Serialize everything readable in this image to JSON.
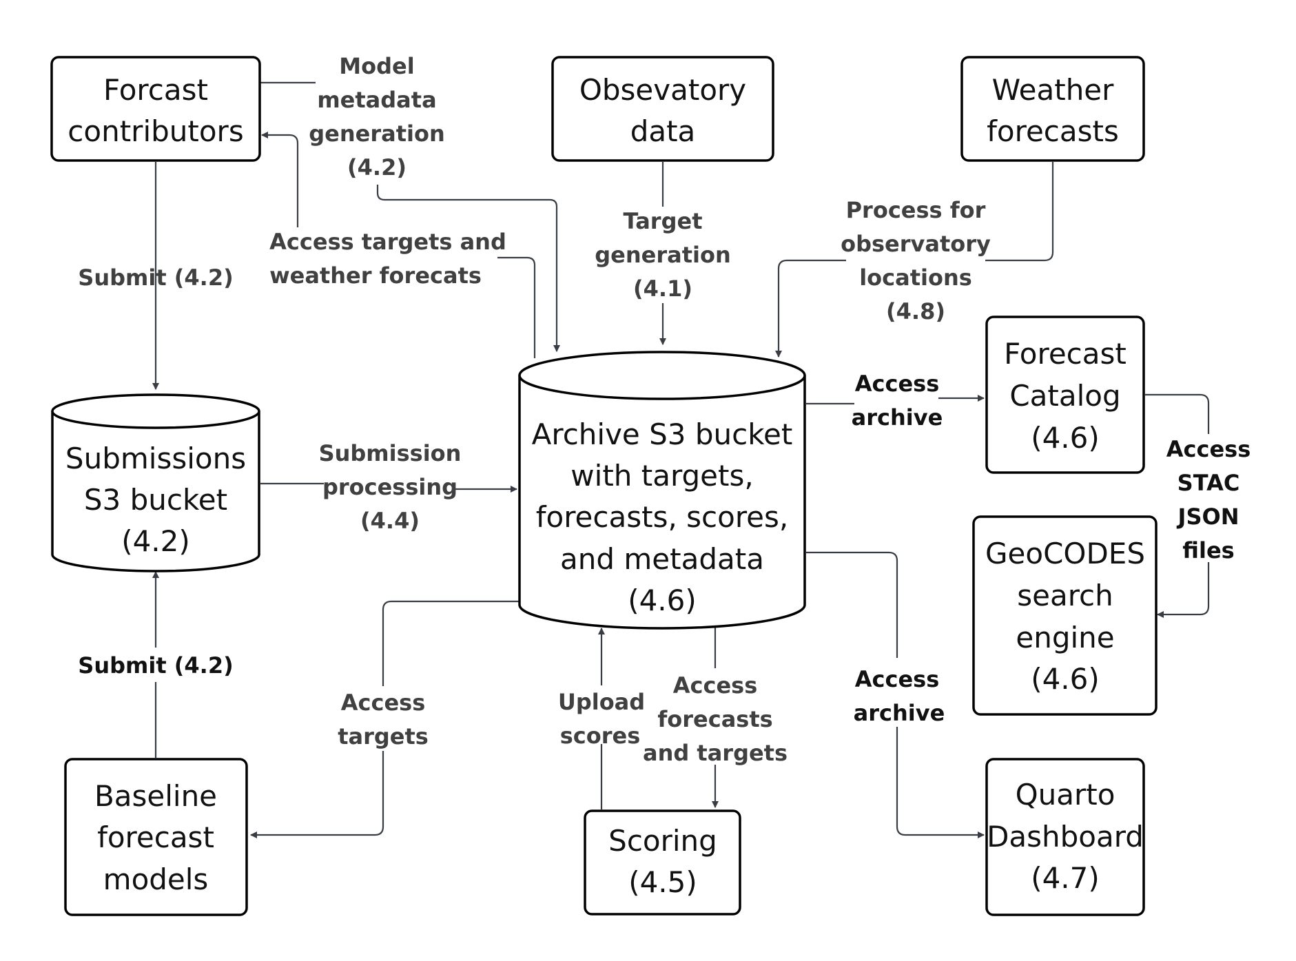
{
  "nodes": {
    "forcast_contributors": [
      "Forcast",
      "contributors"
    ],
    "observatory_data": [
      "Obsevatory",
      "data"
    ],
    "weather_forecasts": [
      "Weather",
      "forecasts"
    ],
    "submissions_bucket": [
      "Submissions",
      "S3 bucket",
      "(4.2)"
    ],
    "archive_bucket": [
      "Archive S3 bucket",
      "with targets,",
      "forecasts, scores,",
      "and metadata",
      "(4.6)"
    ],
    "forecast_catalog": [
      "Forecast",
      "Catalog",
      "(4.6)"
    ],
    "geocodes": [
      "GeoCODES",
      "search",
      "engine",
      "(4.6)"
    ],
    "baseline_models": [
      "Baseline",
      "forecast",
      "models"
    ],
    "scoring": [
      "Scoring",
      "(4.5)"
    ],
    "quarto_dashboard": [
      "Quarto",
      "Dashboard",
      "(4.7)"
    ]
  },
  "edges": {
    "model_metadata": [
      "Model",
      "metadata",
      "generation",
      "(4.2)"
    ],
    "access_targets_weather": [
      "Access targets and",
      "weather forecats"
    ],
    "submit_contrib": [
      "Submit (4.2)"
    ],
    "target_generation": [
      "Target",
      "generation",
      "(4.1)"
    ],
    "process_observatory": [
      "Process for",
      "observatory",
      "locations",
      "(4.8)"
    ],
    "submission_processing": [
      "Submission",
      "processing",
      "(4.4)"
    ],
    "access_archive_catalog": [
      "Access",
      "archive"
    ],
    "access_stac": [
      "Access",
      "STAC",
      "JSON",
      "files"
    ],
    "submit_baseline": [
      "Submit (4.2)"
    ],
    "access_targets": [
      "Access",
      "targets"
    ],
    "upload_scores": [
      "Upload",
      "scores"
    ],
    "access_forecasts_targets": [
      "Access",
      "forecasts",
      "and targets"
    ],
    "access_archive_dashboard": [
      "Access",
      "archive"
    ]
  }
}
